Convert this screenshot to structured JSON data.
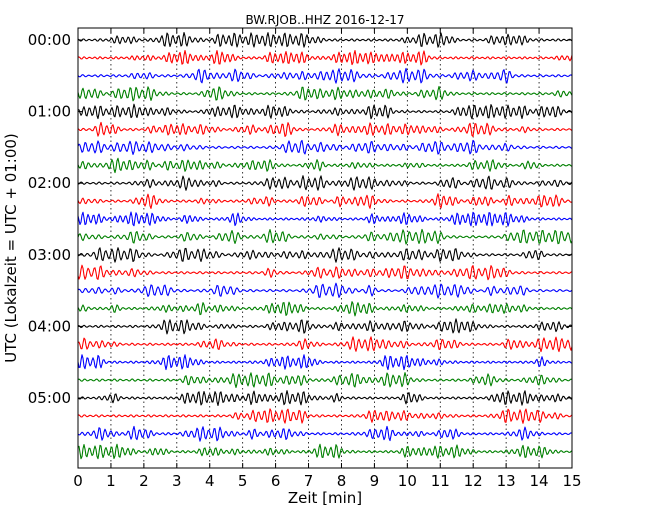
{
  "chart_data": {
    "type": "line",
    "title": "BW.RJOB..HHZ 2016-12-17",
    "xlabel": "Zeit  [min]",
    "ylabel": "UTC (Lokalzeit = UTC + 01:00)",
    "xlim": [
      0,
      15
    ],
    "x_ticks": [
      "0",
      "1",
      "2",
      "3",
      "4",
      "5",
      "6",
      "7",
      "8",
      "9",
      "10",
      "11",
      "12",
      "13",
      "14",
      "15"
    ],
    "y_tick_labels": [
      "00:00",
      "01:00",
      "02:00",
      "03:00",
      "04:00",
      "05:00"
    ],
    "grid": "vertical-dotted",
    "trace_count": 24,
    "traces_per_hour": 4,
    "minutes_per_trace": 15,
    "colors": [
      "#000000",
      "#ff0000",
      "#0000ff",
      "#008000"
    ]
  }
}
